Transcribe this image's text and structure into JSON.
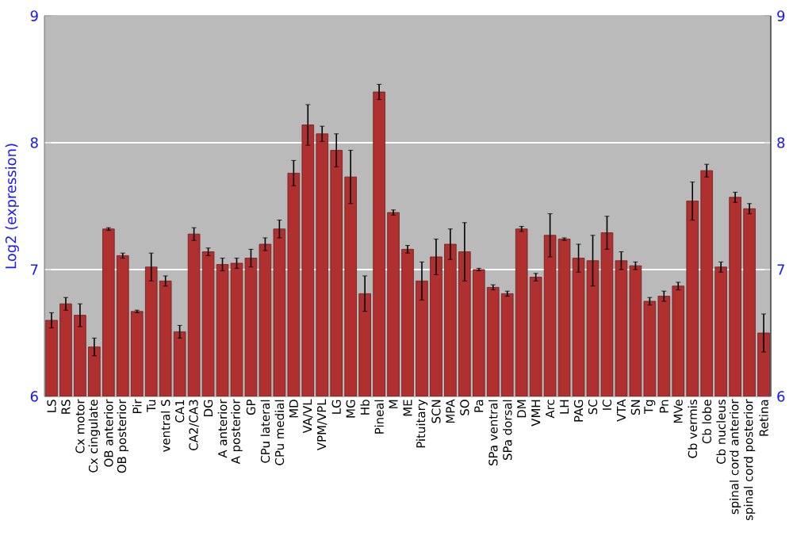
{
  "chart_data": {
    "type": "bar",
    "ylabel": "Log2 (expression)",
    "categories": [
      "LS",
      "RS",
      "Cx motor",
      "Cx cingulate",
      "OB anterior",
      "OB posterior",
      "Pir",
      "Tu",
      "ventral S",
      "CA1",
      "CA2/CA3",
      "DG",
      "A anterior",
      "A posterior",
      "GP",
      "CPu lateral",
      "CPu medial",
      "MD",
      "VA/VL",
      "VPM/VPL",
      "LG",
      "MG",
      "Hb",
      "Pineal",
      "M",
      "ME",
      "Pituitary",
      "SCN",
      "MPA",
      "SO",
      "Pa",
      "SPa ventral",
      "SPa dorsal",
      "DM",
      "VMH",
      "Arc",
      "LH",
      "PAG",
      "SC",
      "IC",
      "VTA",
      "SN",
      "Tg",
      "Pn",
      "MVe",
      "Cb vermis",
      "Cb lobe",
      "Cb nucleus",
      "spinal cord anterior",
      "spinal cord posterior",
      "Retina"
    ],
    "values": [
      6.6,
      6.73,
      6.64,
      6.39,
      7.32,
      7.11,
      6.67,
      7.02,
      6.91,
      6.51,
      7.28,
      7.14,
      7.04,
      7.05,
      7.09,
      7.2,
      7.32,
      7.76,
      8.14,
      8.07,
      7.94,
      7.73,
      6.81,
      8.4,
      7.45,
      7.16,
      6.91,
      7.1,
      7.2,
      7.14,
      7.0,
      6.86,
      6.81,
      7.32,
      6.94,
      7.27,
      7.24,
      7.09,
      7.07,
      7.29,
      7.07,
      7.03,
      6.75,
      6.79,
      6.87,
      7.54,
      7.78,
      7.02,
      7.57,
      7.48,
      6.5
    ],
    "errors": [
      0.06,
      0.05,
      0.09,
      0.07,
      0.01,
      0.02,
      0.01,
      0.11,
      0.04,
      0.05,
      0.05,
      0.03,
      0.05,
      0.04,
      0.07,
      0.05,
      0.07,
      0.1,
      0.16,
      0.06,
      0.13,
      0.21,
      0.14,
      0.06,
      0.02,
      0.03,
      0.15,
      0.14,
      0.12,
      0.23,
      0.01,
      0.02,
      0.02,
      0.02,
      0.03,
      0.17,
      0.01,
      0.11,
      0.2,
      0.13,
      0.07,
      0.03,
      0.03,
      0.04,
      0.03,
      0.15,
      0.05,
      0.04,
      0.04,
      0.04,
      0.15
    ],
    "color": "#b03030",
    "ylim": [
      6,
      9
    ],
    "yticks": [
      6,
      7,
      8,
      9
    ],
    "y2lim": [
      6,
      9
    ],
    "y2ticks": [
      6,
      7,
      8,
      9
    ],
    "grid": "y"
  }
}
